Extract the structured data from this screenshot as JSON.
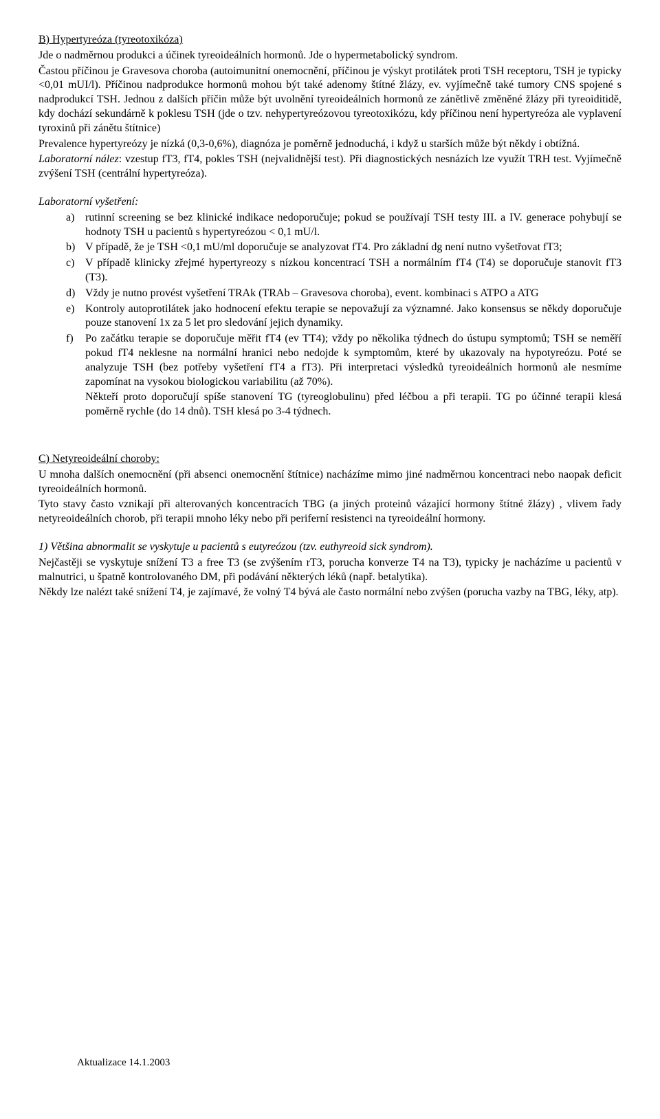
{
  "sectionB": {
    "heading_prefix": "B) Hypertyreóza",
    "heading_paren": " (tyreotoxikóza)",
    "p1": "Jde o nadměrnou produkci a účinek tyreoideálních hormonů. Jde o hypermetabolický syndrom.",
    "p2": "Častou příčinou je Gravesova choroba (autoimunitní onemocnění, příčinou je výskyt protilátek proti TSH receptoru, TSH je typicky <0,01 mUI/l). Příčinou nadprodukce hormonů mohou být také adenomy štítné žlázy, ev. vyjímečně také tumory CNS spojené s nadprodukcí TSH. Jednou z dalších příčin může být uvolnění tyreoideálních hormonů ze zánětlivě změněné žlázy  při tyreoiditidě, kdy dochází sekundárně k poklesu TSH (jde o tzv. nehypertyreózovou tyreotoxikózu, kdy příčinou není hypertyreóza ale vyplavení tyroxinů při zánětu štítnice)",
    "p3": "Prevalence hypertyreózy je nízká (0,3-0,6%), diagnóza je poměrně jednoduchá, i když u starších může být někdy i obtížná.",
    "p4_a": "Laboratorní nález",
    "p4_b": ": vzestup fT3, fT4, pokles TSH (nejvalidnější test). Při diagnostických nesnázích lze využít TRH test. Vyjímečně zvýšení TSH (centrální hypertyreóza).",
    "lab_heading": "Laboratorní vyšetření:",
    "items": [
      {
        "m": "a)",
        "t": "rutinní screening  se bez klinické indikace nedoporučuje; pokud se používají TSH testy III. a IV. generace pohybují se hodnoty TSH u pacientů s hypertyreózou < 0,1 mU/l."
      },
      {
        "m": "b)",
        "t": "V případě, že je TSH <0,1 mU/ml doporučuje se analyzovat fT4. Pro základní dg není nutno vyšetřovat fT3;"
      },
      {
        "m": "c)",
        "t": "V případě klinicky zřejmé hypertyreozy s nízkou koncentrací TSH a normálním fT4 (T4) se doporučuje stanovit fT3 (T3)."
      },
      {
        "m": "d)",
        "t": "Vždy je nutno provést vyšetření TRAk (TRAb – Gravesova choroba), event. kombinaci s ATPO a ATG"
      },
      {
        "m": "e)",
        "t": "Kontroly autoprotilátek jako hodnocení efektu terapie se nepovažují za významné. Jako konsensus se někdy doporučuje pouze stanovení 1x za 5 let pro sledování jejich dynamiky."
      },
      {
        "m": "f)",
        "t": "Po začátku terapie se doporučuje měřit fT4 (ev TT4); vždy po několika týdnech do ústupu symptomů; TSH se neměří pokud fT4 neklesne na normální hranici nebo nedojde k symptomům, které by ukazovaly na hypotyreózu. Poté se analyzuje TSH (bez potřeby vyšetření fT4 a fT3). Při interpretaci výsledků tyreoideálních hormonů ale nesmíme zapomínat na vysokou biologickou variabilitu (až 70%)."
      },
      {
        "m": "",
        "t": "Někteří proto doporučují spíše stanovení TG (tyreoglobulinu) před léčbou a při terapii. TG po účinné terapii klesá poměrně rychle (do 14 dnů). TSH klesá po 3-4 týdnech."
      }
    ]
  },
  "sectionC": {
    "heading": "C) Netyreoideální choroby:",
    "p1": "U mnoha dalších onemocnění (při absenci onemocnění štítnice) nacházíme mimo jiné nadměrnou koncentraci nebo naopak deficit tyreoideálních hormonů.",
    "p2": "Tyto stavy často vznikají při alterovaných koncentracích TBG (a jiných proteinů vázající hormony štítné žlázy) , vlivem řady netyreoideálních chorob, při terapii mnoho léky nebo při periferní resistenci na tyreoideální hormony.",
    "p3_a": "1) Většina abnormalit se vyskytuje u pacientů s eutyreózou",
    "p3_b": " (tzv. euthyreoid sick syndrom).",
    "p4": "Nejčastěji se vyskytuje snížení T3 a free T3 (se zvýšením rT3, porucha konverze T4 na T3), typicky je nacházíme u pacientů v malnutrici, u špatně kontrolovaného DM, při podávání některých léků (např. betalytika).",
    "p5": "Někdy lze nalézt také snížení T4, je zajímavé, že volný T4 bývá ale často normální nebo zvýšen (porucha vazby na TBG, léky, atp)."
  },
  "footer": "Aktualizace 14.1.2003"
}
